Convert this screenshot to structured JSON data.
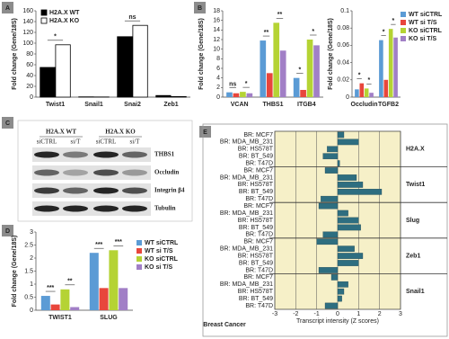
{
  "chart_data": [
    {
      "panel": "A",
      "type": "bar",
      "ylabel": "Fold change (Gene/18S)",
      "categories": [
        "Twist1",
        "Snail1",
        "Snai2",
        "Zeb1"
      ],
      "series": [
        {
          "name": "H2A.X WT",
          "color": "#000000",
          "values": [
            55,
            0.5,
            112,
            3
          ]
        },
        {
          "name": "H2A.X KO",
          "color": "#ffffff",
          "values": [
            97,
            0.3,
            133,
            1
          ]
        }
      ],
      "bar_edge": "#000000",
      "ylim": [
        0,
        160
      ],
      "yticks": [
        0,
        20,
        40,
        60,
        80,
        100,
        120,
        140,
        160
      ],
      "legend": "upper left",
      "annotations": [
        {
          "text": "*",
          "category": 0,
          "series": [
            0,
            1
          ]
        },
        {
          "text": "ns",
          "category": 2,
          "series": [
            0,
            1
          ]
        }
      ]
    },
    {
      "panel": "B",
      "type": "bar",
      "ylabel": "Fold change (Gene/18S)",
      "categories": [
        "VCAN",
        "THBS1",
        "ITGB4"
      ],
      "series": [
        {
          "color": "#5b9bd5",
          "values": [
            1,
            11.8,
            4
          ]
        },
        {
          "color": "#e8463c",
          "values": [
            0.8,
            5,
            1.5
          ]
        },
        {
          "color": "#b5d334",
          "values": [
            1.1,
            15.5,
            12
          ]
        },
        {
          "color": "#a17fc6",
          "values": [
            0.8,
            9.7,
            10.8
          ]
        }
      ],
      "ylim": [
        0,
        18
      ],
      "yticks": [
        0,
        2,
        4,
        6,
        8,
        10,
        12,
        14,
        16,
        18
      ],
      "annotations": [
        {
          "text": "ns",
          "category": 0,
          "series": [
            0,
            1
          ]
        },
        {
          "text": "*",
          "category": 0,
          "series": [
            2,
            3
          ]
        },
        {
          "text": "**",
          "category": 1,
          "series": [
            0,
            1
          ]
        },
        {
          "text": "**",
          "category": 1,
          "series": [
            2,
            3
          ]
        },
        {
          "text": "*",
          "category": 2,
          "series": [
            0,
            1
          ]
        },
        {
          "text": "*",
          "category": 2,
          "series": [
            2,
            3
          ]
        }
      ]
    },
    {
      "type": "bar",
      "ylabel": "Fold change (Gene/18S)",
      "categories": [
        "Occludin",
        "TGFB2"
      ],
      "series": [
        {
          "name": "WT siCTRL",
          "color": "#5b9bd5",
          "values": [
            0.009,
            0.066
          ]
        },
        {
          "name": "WT si T/S",
          "color": "#e8463c",
          "values": [
            0.016,
            0.02
          ]
        },
        {
          "name": "KO siCTRL",
          "color": "#b5d334",
          "values": [
            0.01,
            0.079
          ]
        },
        {
          "name": "KO si T/S",
          "color": "#a17fc6",
          "values": [
            0.005,
            0.069
          ]
        }
      ],
      "ylim": [
        0,
        0.1
      ],
      "yticks": [
        0,
        0.02,
        0.04,
        0.06,
        0.08,
        0.1
      ],
      "legend": "upper right",
      "annotations": [
        {
          "text": "*",
          "category": 0,
          "series": [
            0,
            1
          ]
        },
        {
          "text": "*",
          "category": 0,
          "series": [
            2,
            3
          ]
        },
        {
          "text": "*",
          "category": 1,
          "series": [
            0,
            1
          ]
        },
        {
          "text": "*",
          "category": 1,
          "series": [
            2,
            3
          ]
        }
      ]
    },
    {
      "panel": "D",
      "type": "bar",
      "ylabel": "Fold change (Gene/18S)",
      "categories": [
        "TWIST1",
        "SLUG"
      ],
      "series": [
        {
          "name": "WT siCTRL",
          "color": "#5b9bd5",
          "values": [
            0.55,
            2.2
          ]
        },
        {
          "name": "WT si T/S",
          "color": "#e8463c",
          "values": [
            0.22,
            0.85
          ]
        },
        {
          "name": "KO siCTRL",
          "color": "#b5d334",
          "values": [
            0.8,
            2.3
          ]
        },
        {
          "name": "KO si T/S",
          "color": "#a17fc6",
          "values": [
            0.12,
            0.85
          ]
        }
      ],
      "ylim": [
        0,
        3
      ],
      "yticks": [
        0,
        0.5,
        1,
        1.5,
        2,
        2.5,
        3
      ],
      "legend": "upper right",
      "annotations": [
        {
          "text": "***",
          "category": 0,
          "series": [
            0,
            1
          ]
        },
        {
          "text": "**",
          "category": 0,
          "series": [
            2,
            3
          ]
        },
        {
          "text": "***",
          "category": 1,
          "series": [
            0,
            1
          ]
        },
        {
          "text": "***",
          "category": 1,
          "series": [
            2,
            3
          ]
        }
      ]
    },
    {
      "panel": "E",
      "type": "hbar",
      "xlabel": "Transcript intensity (Z scores)",
      "footer": "Breast Cancer",
      "xlim": [
        -3,
        3
      ],
      "xticks": [
        -3,
        -2,
        -1,
        0,
        1,
        2,
        3
      ],
      "color": "#2e6e80",
      "background": "#f6f0c8",
      "grid": true,
      "groups": [
        {
          "name": "H2A.X",
          "categories": [
            "BR: MCF7",
            "BR: MDA_MB_231",
            "BR: HS578T",
            "BR: BT_549",
            "BR: T47D"
          ],
          "values": [
            0.3,
            1.0,
            -0.5,
            -0.7,
            0.1
          ]
        },
        {
          "name": "Twist1",
          "categories": [
            "BR: MCF7",
            "BR: MDA_MB_231",
            "BR: HS578T",
            "BR: BT_549",
            "BR: T47D"
          ],
          "values": [
            -0.6,
            0.9,
            1.2,
            2.1,
            -0.8
          ]
        },
        {
          "name": "Slug",
          "categories": [
            "BR: MCF7",
            "BR: MDA_MB_231",
            "BR: HS578T",
            "BR: BT_549",
            "BR: T47D"
          ],
          "values": [
            -0.9,
            0.5,
            1.0,
            1.1,
            -0.7
          ]
        },
        {
          "name": "Zeb1",
          "categories": [
            "BR: MCF7",
            "BR: MDA_MB_231",
            "BR: HS578T",
            "BR: BT_549",
            "BR: T47D"
          ],
          "values": [
            -1.0,
            0.8,
            1.2,
            1.0,
            -0.9
          ]
        },
        {
          "name": "Snail1",
          "categories": [
            "BR: MCF7",
            "BR: MDA_MB_231",
            "BR: HS578T",
            "BR: BT_549",
            "BR: T47D"
          ],
          "values": [
            -0.3,
            0.5,
            0.3,
            0.2,
            -0.6
          ]
        }
      ]
    }
  ],
  "blot": {
    "panel": "C",
    "groups": [
      "H2A.X WT",
      "H2A.X KO"
    ],
    "lanes": [
      "siCTRL",
      "si/T",
      "siCTRL",
      "si/T"
    ],
    "rows": [
      "THBS1",
      "Occludin",
      "Integrin β4",
      "Tubulin"
    ]
  }
}
